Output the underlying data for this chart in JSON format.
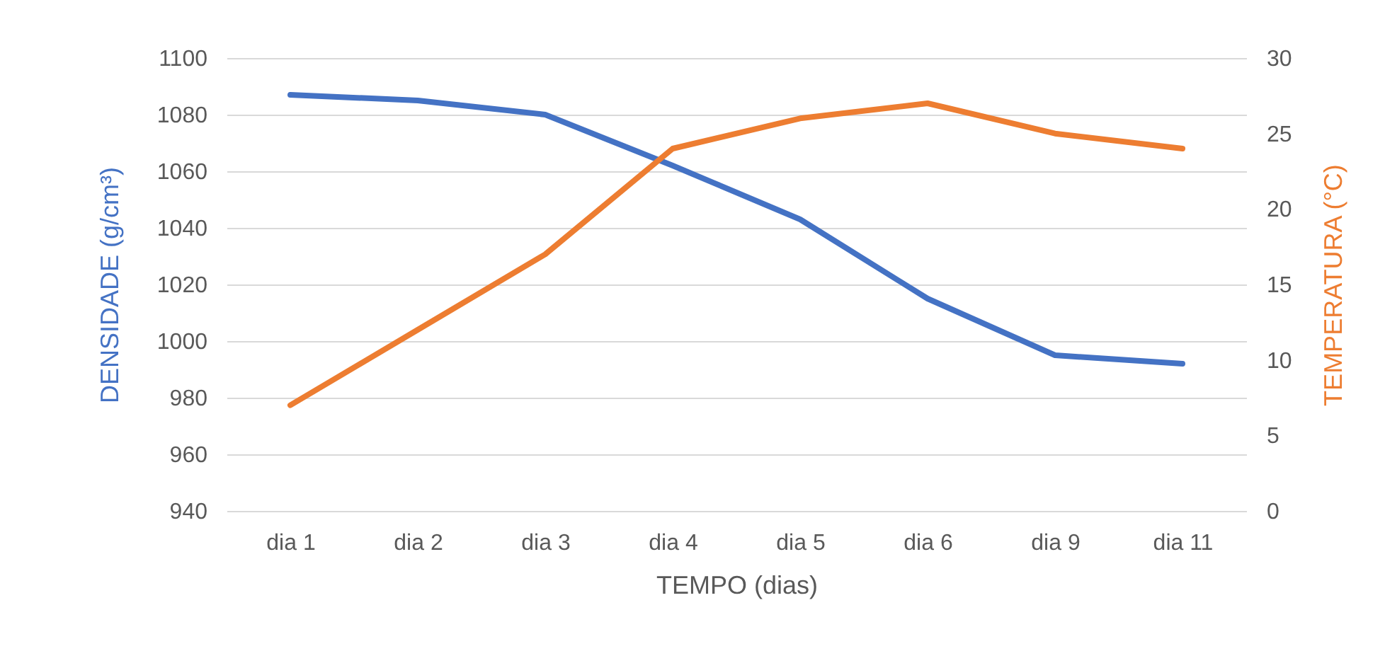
{
  "chart_data": {
    "type": "line",
    "xlabel": "TEMPO (dias)",
    "ylabel": "DENSIDADE (g/cm³)",
    "y2label": "TEMPERATURA (°C)",
    "categories": [
      "dia 1",
      "dia 2",
      "dia 3",
      "dia 4",
      "dia 5",
      "dia 6",
      "dia 9",
      "dia 11"
    ],
    "series": [
      {
        "color": "#4472c4",
        "values": [
          1087,
          1085,
          1080,
          1062,
          1043,
          1015,
          995,
          992
        ]
      },
      {
        "color": "#ed7d31",
        "axis": "y2",
        "values": [
          7,
          12,
          17,
          24,
          26,
          27,
          25,
          24
        ]
      }
    ],
    "ylim": [
      940,
      1100
    ],
    "yticks": [
      940,
      960,
      980,
      1000,
      1020,
      1040,
      1060,
      1080,
      1100
    ],
    "y2lim": [
      0,
      30
    ],
    "y2ticks": [
      0,
      5,
      10,
      15,
      20,
      25,
      30
    ],
    "grid": "y",
    "marker": "none",
    "line_style": "solid"
  }
}
